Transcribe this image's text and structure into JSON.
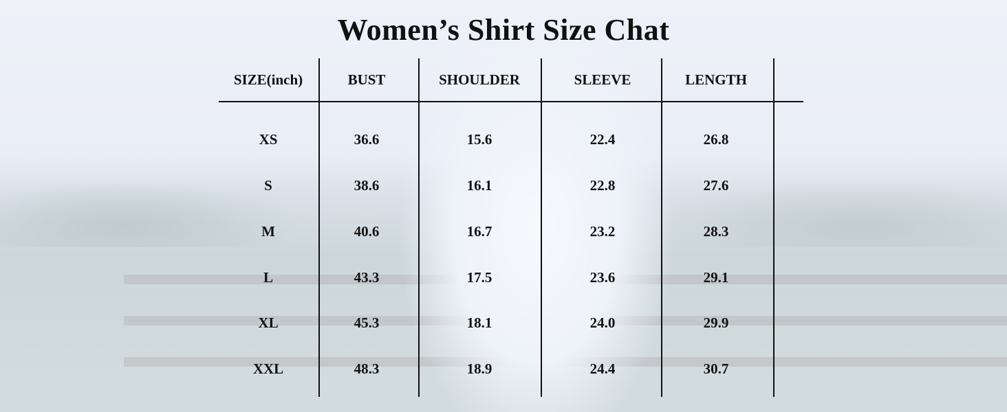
{
  "title": "Women’s Shirt Size Chat",
  "table": {
    "headers": [
      "SIZE(inch)",
      "BUST",
      "SHOULDER",
      "SLEEVE",
      "LENGTH"
    ],
    "rows": [
      [
        "XS",
        "36.6",
        "15.6",
        "22.4",
        "26.8"
      ],
      [
        "S",
        "38.6",
        "16.1",
        "22.8",
        "27.6"
      ],
      [
        "M",
        "40.6",
        "16.7",
        "23.2",
        "28.3"
      ],
      [
        "L",
        "43.3",
        "17.5",
        "23.6",
        "29.1"
      ],
      [
        "XL",
        "45.3",
        "18.1",
        "24.0",
        "29.9"
      ],
      [
        "XXL",
        "48.3",
        "18.9",
        "24.4",
        "30.7"
      ]
    ]
  }
}
